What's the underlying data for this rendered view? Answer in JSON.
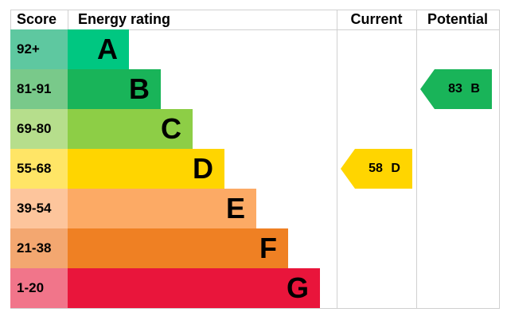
{
  "chart_data": {
    "type": "table",
    "headers": {
      "score": "Score",
      "rating": "Energy rating",
      "current": "Current",
      "potential": "Potential"
    },
    "bands": [
      {
        "score": "92+",
        "letter": "A",
        "color": "#00c781",
        "score_color": "#5ec8a0"
      },
      {
        "score": "81-91",
        "letter": "B",
        "color": "#19b459",
        "score_color": "#79c98a"
      },
      {
        "score": "69-80",
        "letter": "C",
        "color": "#8dce46",
        "score_color": "#b6de8c"
      },
      {
        "score": "55-68",
        "letter": "D",
        "color": "#ffd500",
        "score_color": "#ffe566"
      },
      {
        "score": "39-54",
        "letter": "E",
        "color": "#fcaa65",
        "score_color": "#fdc59c"
      },
      {
        "score": "21-38",
        "letter": "F",
        "color": "#ef8023",
        "score_color": "#f3a770"
      },
      {
        "score": "1-20",
        "letter": "G",
        "color": "#e9153b",
        "score_color": "#f1758a"
      }
    ],
    "current": {
      "value": 58,
      "letter": "D",
      "label": "58 D",
      "color": "#ffd500"
    },
    "potential": {
      "value": 83,
      "letter": "B",
      "label": "83 B",
      "color": "#19b459"
    }
  }
}
